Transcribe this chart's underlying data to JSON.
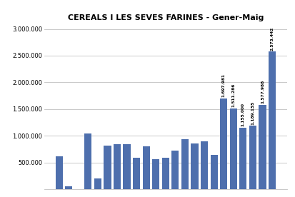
{
  "title": "CEREALS I LES SEVES FARINES - Gener-Maig",
  "bar_color": "#4E6FAD",
  "ylim": [
    0,
    3100000
  ],
  "yticks": [
    500000,
    1000000,
    1500000,
    2000000,
    2500000,
    3000000
  ],
  "bar_values": [
    620000,
    50000,
    0,
    1040000,
    200000,
    820000,
    840000,
    840000,
    590000,
    805000,
    560000,
    590000,
    720000,
    940000,
    850000,
    890000,
    640000,
    1697981,
    1511286,
    1155000,
    1189155,
    1577988,
    2573442
  ],
  "annotations": [
    {
      "idx": 17,
      "val": 1697981,
      "label": "1.697.981"
    },
    {
      "idx": 18,
      "val": 1511286,
      "label": "1.511.286"
    },
    {
      "idx": 19,
      "val": 1155000,
      "label": "1.155.000"
    },
    {
      "idx": 20,
      "val": 1189155,
      "label": "1.189.155"
    },
    {
      "idx": 21,
      "val": 1577988,
      "label": "1.577.988"
    },
    {
      "idx": 22,
      "val": 2573442,
      "label": "2.573.442"
    }
  ],
  "grid_color": "#C0C0C0",
  "bg_color": "#FFFFFF",
  "title_fontsize": 8,
  "ytick_fontsize": 6,
  "annotation_fontsize": 4.2
}
